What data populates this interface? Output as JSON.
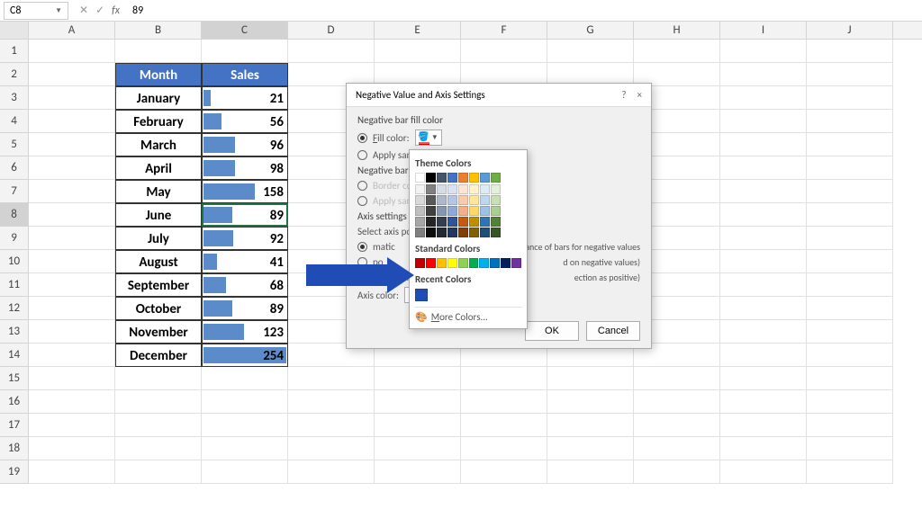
{
  "cellRef": "C8",
  "formulaValue": "89",
  "columns": [
    "A",
    "B",
    "C",
    "D",
    "E",
    "F",
    "G",
    "H",
    "I",
    "J"
  ],
  "selectedCol": "C",
  "selectedRow": 8,
  "rowCount": 19,
  "table": {
    "headers": {
      "month": "Month",
      "sales": "Sales"
    },
    "rows": [
      {
        "month": "January",
        "sales": 21
      },
      {
        "month": "February",
        "sales": 56
      },
      {
        "month": "March",
        "sales": 96
      },
      {
        "month": "April",
        "sales": 98
      },
      {
        "month": "May",
        "sales": 158
      },
      {
        "month": "June",
        "sales": 89
      },
      {
        "month": "July",
        "sales": 92
      },
      {
        "month": "August",
        "sales": 41
      },
      {
        "month": "September",
        "sales": 68
      },
      {
        "month": "October",
        "sales": 89
      },
      {
        "month": "November",
        "sales": 123
      },
      {
        "month": "December",
        "sales": 254
      }
    ],
    "maxValue": 254,
    "barColor": "#5b8bc9",
    "headerBg": "#4472c4"
  },
  "dialog": {
    "title": "Negative Value and Axis Settings",
    "help": "?",
    "close": "×",
    "section1": "Negative bar fill color",
    "fillColorLabel": "Fill color:",
    "applySameLabel": "Apply same",
    "section2": "Negative bar bo",
    "borderColorLabel": "Border colo",
    "applySame2Label": "Apply same",
    "section3": "Axis settings",
    "axisDesc": "Select axis pos",
    "autoLabel": "matic",
    "autoTail": "rance of bars for negative values",
    "midLabel": "po",
    "midTail": "d on negative values)",
    "noneLabel": "None (sho",
    "noneTail": "ection as positive)",
    "axisColorLabel": "Axis color:",
    "ok": "OK",
    "cancel": "Cancel"
  },
  "colorPicker": {
    "themeLabel": "Theme Colors",
    "theme": [
      "#ffffff",
      "#000000",
      "#44546a",
      "#4472c4",
      "#ed7d31",
      "#ffc000",
      "#5b9bd5",
      "#70ad47"
    ],
    "shades": {
      "cols": [
        [
          "#f2f2f2",
          "#d9d9d9",
          "#bfbfbf",
          "#a6a6a6",
          "#808080"
        ],
        [
          "#808080",
          "#595959",
          "#404040",
          "#262626",
          "#0d0d0d"
        ],
        [
          "#d6dce5",
          "#adb9ca",
          "#8497b0",
          "#333f50",
          "#222a35"
        ],
        [
          "#d9e1f2",
          "#b4c6e7",
          "#8ea9db",
          "#305496",
          "#203764"
        ],
        [
          "#fce4d6",
          "#f8cbad",
          "#f4b084",
          "#c65911",
          "#833c0c"
        ],
        [
          "#fff2cc",
          "#ffe699",
          "#ffd966",
          "#bf8f00",
          "#806000"
        ],
        [
          "#ddebf7",
          "#bdd7ee",
          "#9bc2e6",
          "#2f75b5",
          "#1f4e78"
        ],
        [
          "#e2efda",
          "#c6e0b4",
          "#a9d08e",
          "#548235",
          "#375623"
        ]
      ]
    },
    "standardLabel": "Standard Colors",
    "standard": [
      "#c00000",
      "#ff0000",
      "#ffc000",
      "#ffff00",
      "#92d050",
      "#00b050",
      "#00b0f0",
      "#0070c0",
      "#002060",
      "#7030a0"
    ],
    "recentLabel": "Recent Colors",
    "recent": [
      "#1f4db5"
    ],
    "moreLabel": "More Colors..."
  },
  "arrowColor": "#1f4db5"
}
